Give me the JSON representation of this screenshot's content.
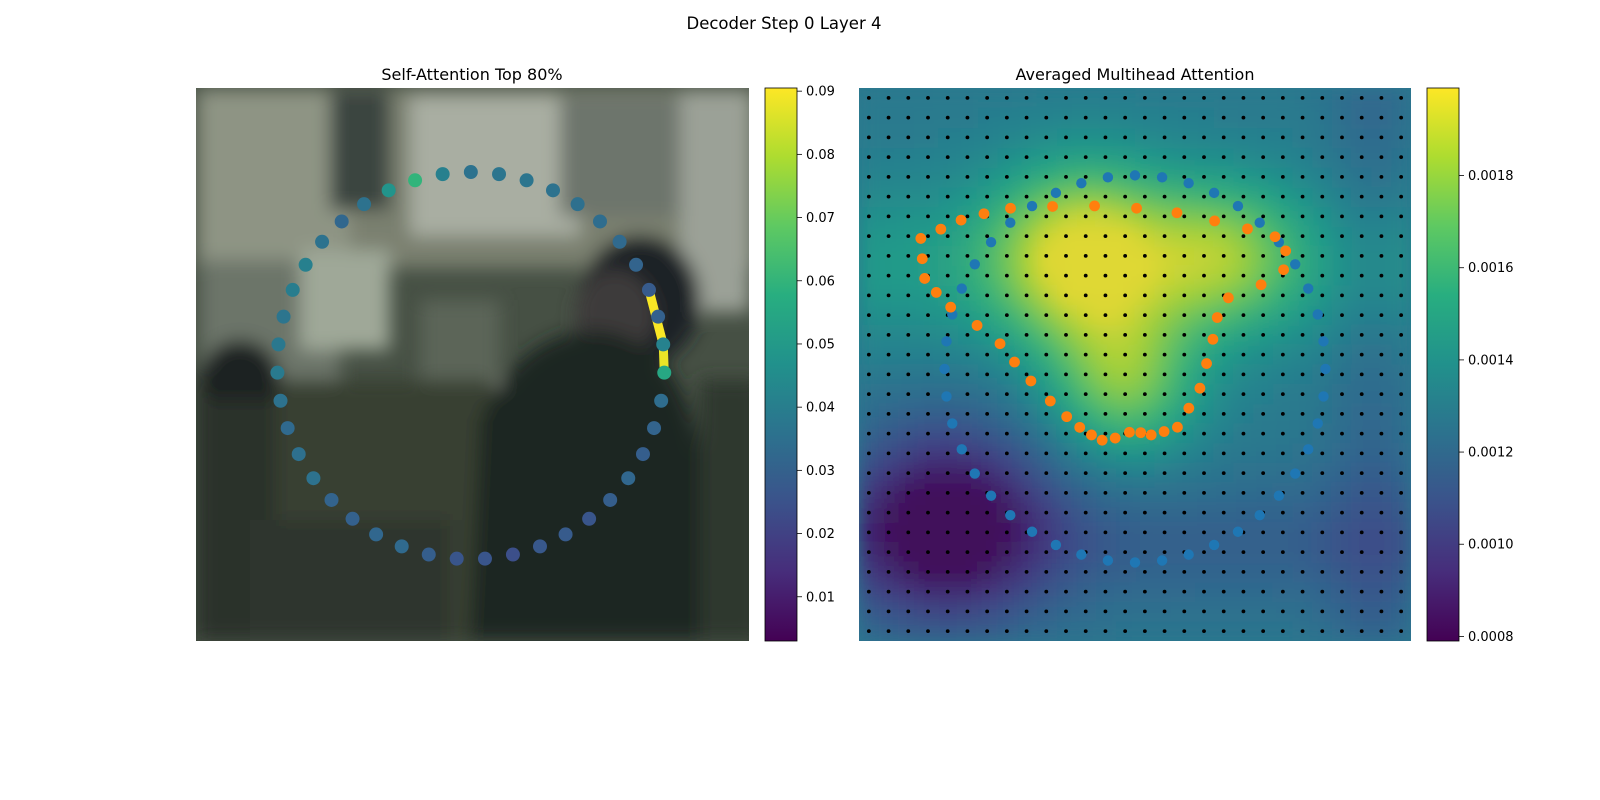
{
  "figure": {
    "suptitle": "Decoder Step 0 Layer 4"
  },
  "chart_data": [
    {
      "type": "scatter",
      "title": "Self-Attention Top 80%",
      "background": "blurred photograph (office scene, person in dark clothing and cap)",
      "colormap": "viridis",
      "colorbar": {
        "range": [
          0.003,
          0.0905
        ],
        "ticks": [
          "0.01",
          "0.02",
          "0.03",
          "0.04",
          "0.05",
          "0.06",
          "0.07",
          "0.08",
          "0.09"
        ],
        "tick_values": [
          0.01,
          0.02,
          0.03,
          0.04,
          0.05,
          0.06,
          0.07,
          0.08,
          0.09
        ]
      },
      "polygon_point_attention": [
        0.036,
        0.037,
        0.037,
        0.036,
        0.035,
        0.034,
        0.033,
        0.031,
        0.028,
        0.03,
        0.042,
        0.055,
        0.034,
        0.031,
        0.029,
        0.032,
        0.029,
        0.026,
        0.028,
        0.027,
        0.024,
        0.026,
        0.026,
        0.029,
        0.033,
        0.032,
        0.03,
        0.031,
        0.036,
        0.035,
        0.033,
        0.036,
        0.039,
        0.038,
        0.037,
        0.04,
        0.041,
        0.036,
        0.032,
        0.036,
        0.048,
        0.06,
        0.041
      ],
      "highlighted_links": [
        {
          "from_point": 8,
          "to_point": 10,
          "weight": 0.09
        },
        {
          "from_point": 10,
          "to_point": 11,
          "weight": 0.088
        }
      ]
    },
    {
      "type": "heatmap",
      "title": "Averaged Multihead Attention",
      "colormap": "viridis",
      "grid_size": [
        28,
        28
      ],
      "colorbar": {
        "range": [
          0.00079,
          0.00199
        ],
        "ticks": [
          "0.0008",
          "0.0010",
          "0.0012",
          "0.0014",
          "0.0016",
          "0.0018"
        ],
        "tick_values": [
          0.0008,
          0.001,
          0.0012,
          0.0014,
          0.0016,
          0.0018
        ]
      },
      "hotspots": [
        {
          "label": "peak",
          "row": 8.5,
          "col": 11.5,
          "value": 0.00192
        },
        {
          "label": "secondary",
          "row": 15,
          "col": 13.5,
          "value": 0.0018
        },
        {
          "label": "right lobe",
          "row": 8.5,
          "col": 18.5,
          "value": 0.00168
        },
        {
          "label": "low",
          "row": 22,
          "col": 4.5,
          "value": 0.0008
        }
      ],
      "series": [
        {
          "marker_color": "#1f77b4",
          "point_count": 44
        },
        {
          "marker_color": "#ff7f0e",
          "point_count": 40
        }
      ]
    }
  ]
}
